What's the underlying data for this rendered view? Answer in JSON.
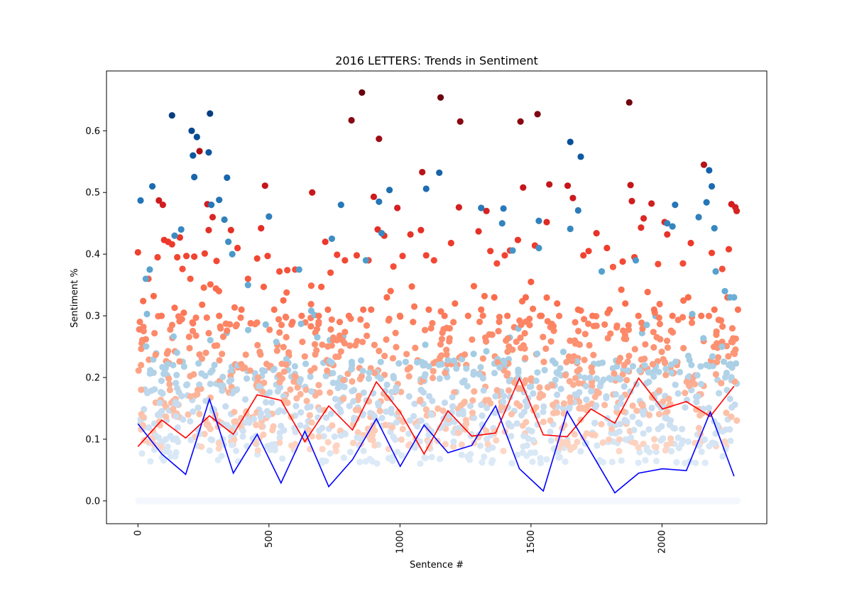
{
  "chart_data": {
    "type": "scatter",
    "title": "2016 LETTERS: Trends in Sentiment",
    "xlabel": "Sentence #",
    "ylabel": "Sentiment %",
    "xlim": [
      -120,
      2400
    ],
    "ylim": [
      -0.037,
      0.697
    ],
    "x_ticks": [
      0,
      500,
      1000,
      1500,
      2000
    ],
    "y_ticks": [
      0.0,
      0.1,
      0.2,
      0.3,
      0.4,
      0.5,
      0.6
    ],
    "x_tick_labels": [
      "0",
      "500",
      "1000",
      "1500",
      "2000"
    ],
    "y_tick_labels": [
      "0.0",
      "0.1",
      "0.2",
      "0.3",
      "0.4",
      "0.5",
      "0.6"
    ],
    "grid": false,
    "n_sentences": 2300,
    "series": [
      {
        "kind": "scatter",
        "colormap": "Reds",
        "color_by_value": true,
        "points": [
          [
            0,
            0.403
          ],
          [
            5,
            0.278
          ],
          [
            20,
            0.324
          ],
          [
            40,
            0.36
          ],
          [
            60,
            0.332
          ],
          [
            75,
            0.395
          ],
          [
            80,
            0.487
          ],
          [
            95,
            0.48
          ],
          [
            100,
            0.423
          ],
          [
            115,
            0.42
          ],
          [
            130,
            0.416
          ],
          [
            150,
            0.395
          ],
          [
            160,
            0.427
          ],
          [
            170,
            0.376
          ],
          [
            185,
            0.397
          ],
          [
            200,
            0.36
          ],
          [
            215,
            0.396
          ],
          [
            235,
            0.567
          ],
          [
            255,
            0.401
          ],
          [
            265,
            0.481
          ],
          [
            270,
            0.439
          ],
          [
            285,
            0.46
          ],
          [
            300,
            0.389
          ],
          [
            355,
            0.439
          ],
          [
            380,
            0.41
          ],
          [
            420,
            0.36
          ],
          [
            455,
            0.393
          ],
          [
            470,
            0.442
          ],
          [
            485,
            0.511
          ],
          [
            495,
            0.397
          ],
          [
            540,
            0.372
          ],
          [
            570,
            0.374
          ],
          [
            600,
            0.375
          ],
          [
            665,
            0.5
          ],
          [
            700,
            0.347
          ],
          [
            715,
            0.42
          ],
          [
            735,
            0.37
          ],
          [
            760,
            0.399
          ],
          [
            790,
            0.39
          ],
          [
            815,
            0.617
          ],
          [
            835,
            0.398
          ],
          [
            855,
            0.662
          ],
          [
            880,
            0.39
          ],
          [
            900,
            0.493
          ],
          [
            915,
            0.44
          ],
          [
            920,
            0.587
          ],
          [
            940,
            0.43
          ],
          [
            975,
            0.38
          ],
          [
            990,
            0.475
          ],
          [
            1010,
            0.397
          ],
          [
            1040,
            0.432
          ],
          [
            1080,
            0.439
          ],
          [
            1085,
            0.533
          ],
          [
            1100,
            0.398
          ],
          [
            1130,
            0.39
          ],
          [
            1155,
            0.654
          ],
          [
            1195,
            0.418
          ],
          [
            1225,
            0.476
          ],
          [
            1230,
            0.615
          ],
          [
            1300,
            0.437
          ],
          [
            1330,
            0.47
          ],
          [
            1345,
            0.405
          ],
          [
            1370,
            0.385
          ],
          [
            1400,
            0.398
          ],
          [
            1420,
            0.406
          ],
          [
            1450,
            0.423
          ],
          [
            1460,
            0.615
          ],
          [
            1470,
            0.508
          ],
          [
            1500,
            0.355
          ],
          [
            1515,
            0.414
          ],
          [
            1525,
            0.627
          ],
          [
            1560,
            0.452
          ],
          [
            1570,
            0.513
          ],
          [
            1640,
            0.511
          ],
          [
            1660,
            0.491
          ],
          [
            1700,
            0.398
          ],
          [
            1720,
            0.405
          ],
          [
            1750,
            0.434
          ],
          [
            1790,
            0.41
          ],
          [
            1850,
            0.388
          ],
          [
            1875,
            0.646
          ],
          [
            1880,
            0.512
          ],
          [
            1885,
            0.486
          ],
          [
            1895,
            0.395
          ],
          [
            1920,
            0.443
          ],
          [
            1930,
            0.458
          ],
          [
            1960,
            0.482
          ],
          [
            1985,
            0.384
          ],
          [
            2010,
            0.452
          ],
          [
            2020,
            0.432
          ],
          [
            2080,
            0.385
          ],
          [
            2110,
            0.418
          ],
          [
            2160,
            0.545
          ],
          [
            2190,
            0.402
          ],
          [
            2230,
            0.376
          ],
          [
            2255,
            0.408
          ],
          [
            2265,
            0.481
          ],
          [
            2280,
            0.476
          ],
          [
            2285,
            0.47
          ],
          [
            30,
            0.262
          ],
          [
            90,
            0.3
          ],
          [
            140,
            0.313
          ],
          [
            175,
            0.305
          ],
          [
            210,
            0.288
          ],
          [
            245,
            0.318
          ],
          [
            310,
            0.3
          ],
          [
            340,
            0.276
          ],
          [
            395,
            0.31
          ],
          [
            430,
            0.288
          ],
          [
            480,
            0.347
          ],
          [
            520,
            0.31
          ],
          [
            555,
            0.325
          ],
          [
            590,
            0.29
          ],
          [
            625,
            0.3
          ],
          [
            660,
            0.283
          ],
          [
            690,
            0.3
          ],
          [
            725,
            0.31
          ],
          [
            770,
            0.29
          ],
          [
            805,
            0.3
          ],
          [
            860,
            0.31
          ],
          [
            890,
            0.31
          ],
          [
            950,
            0.33
          ],
          [
            1000,
            0.3
          ],
          [
            1050,
            0.29
          ],
          [
            1110,
            0.31
          ],
          [
            1170,
            0.3
          ],
          [
            1210,
            0.32
          ],
          [
            1260,
            0.3
          ],
          [
            1310,
            0.31
          ],
          [
            1360,
            0.33
          ],
          [
            1410,
            0.3
          ],
          [
            1480,
            0.33
          ],
          [
            1540,
            0.3
          ],
          [
            1600,
            0.32
          ],
          [
            1680,
            0.31
          ],
          [
            1735,
            0.3
          ],
          [
            1800,
            0.31
          ],
          [
            1860,
            0.32
          ],
          [
            1910,
            0.3
          ],
          [
            1970,
            0.31
          ],
          [
            2040,
            0.3
          ],
          [
            2100,
            0.33
          ],
          [
            2150,
            0.3
          ],
          [
            2200,
            0.31
          ],
          [
            2250,
            0.33
          ],
          [
            2290,
            0.31
          ]
        ]
      },
      {
        "kind": "scatter",
        "colormap": "Blues",
        "color_by_value": true,
        "points": [
          [
            10,
            0.487
          ],
          [
            30,
            0.36
          ],
          [
            45,
            0.375
          ],
          [
            55,
            0.51
          ],
          [
            130,
            0.625
          ],
          [
            140,
            0.43
          ],
          [
            165,
            0.44
          ],
          [
            205,
            0.6
          ],
          [
            210,
            0.56
          ],
          [
            215,
            0.525
          ],
          [
            225,
            0.59
          ],
          [
            275,
            0.628
          ],
          [
            280,
            0.48
          ],
          [
            270,
            0.565
          ],
          [
            310,
            0.488
          ],
          [
            330,
            0.456
          ],
          [
            340,
            0.524
          ],
          [
            345,
            0.42
          ],
          [
            360,
            0.4
          ],
          [
            420,
            0.35
          ],
          [
            500,
            0.461
          ],
          [
            615,
            0.375
          ],
          [
            740,
            0.425
          ],
          [
            775,
            0.48
          ],
          [
            870,
            0.39
          ],
          [
            920,
            0.485
          ],
          [
            930,
            0.434
          ],
          [
            960,
            0.504
          ],
          [
            1100,
            0.506
          ],
          [
            1150,
            0.532
          ],
          [
            1310,
            0.475
          ],
          [
            1390,
            0.45
          ],
          [
            1395,
            0.474
          ],
          [
            1430,
            0.406
          ],
          [
            1530,
            0.454
          ],
          [
            1530,
            0.41
          ],
          [
            1650,
            0.582
          ],
          [
            1650,
            0.441
          ],
          [
            1690,
            0.558
          ],
          [
            1680,
            0.471
          ],
          [
            1770,
            0.372
          ],
          [
            1900,
            0.39
          ],
          [
            2020,
            0.45
          ],
          [
            2040,
            0.445
          ],
          [
            2050,
            0.48
          ],
          [
            2140,
            0.46
          ],
          [
            2170,
            0.484
          ],
          [
            2180,
            0.536
          ],
          [
            2190,
            0.51
          ],
          [
            2200,
            0.442
          ],
          [
            2205,
            0.372
          ],
          [
            2240,
            0.34
          ],
          [
            2260,
            0.33
          ],
          [
            2275,
            0.33
          ]
        ]
      },
      {
        "kind": "line",
        "name": "",
        "color": "#ff0000",
        "points": [
          [
            0,
            0.088
          ],
          [
            91,
            0.131
          ],
          [
            182,
            0.102
          ],
          [
            273,
            0.138
          ],
          [
            364,
            0.108
          ],
          [
            455,
            0.172
          ],
          [
            546,
            0.163
          ],
          [
            637,
            0.096
          ],
          [
            728,
            0.154
          ],
          [
            819,
            0.115
          ],
          [
            910,
            0.193
          ],
          [
            1001,
            0.144
          ],
          [
            1092,
            0.076
          ],
          [
            1183,
            0.146
          ],
          [
            1274,
            0.105
          ],
          [
            1365,
            0.11
          ],
          [
            1456,
            0.199
          ],
          [
            1547,
            0.107
          ],
          [
            1638,
            0.104
          ],
          [
            1729,
            0.149
          ],
          [
            1820,
            0.126
          ],
          [
            1911,
            0.199
          ],
          [
            2002,
            0.149
          ],
          [
            2093,
            0.161
          ],
          [
            2184,
            0.137
          ],
          [
            2275,
            0.186
          ]
        ]
      },
      {
        "kind": "line",
        "name": "",
        "color": "#0000ff",
        "points": [
          [
            0,
            0.125
          ],
          [
            91,
            0.076
          ],
          [
            182,
            0.043
          ],
          [
            273,
            0.165
          ],
          [
            364,
            0.045
          ],
          [
            455,
            0.108
          ],
          [
            546,
            0.029
          ],
          [
            637,
            0.113
          ],
          [
            728,
            0.023
          ],
          [
            819,
            0.067
          ],
          [
            910,
            0.133
          ],
          [
            1001,
            0.056
          ],
          [
            1092,
            0.123
          ],
          [
            1183,
            0.078
          ],
          [
            1274,
            0.09
          ],
          [
            1365,
            0.154
          ],
          [
            1456,
            0.052
          ],
          [
            1547,
            0.016
          ],
          [
            1638,
            0.145
          ],
          [
            1729,
            0.079
          ],
          [
            1820,
            0.013
          ],
          [
            1911,
            0.045
          ],
          [
            2002,
            0.052
          ],
          [
            2093,
            0.049
          ],
          [
            2184,
            0.144
          ],
          [
            2275,
            0.04
          ]
        ]
      }
    ]
  },
  "colors": {
    "red_line": "#ff0000",
    "blue_line": "#0000ff",
    "zero_band": "#f4f8fe"
  }
}
